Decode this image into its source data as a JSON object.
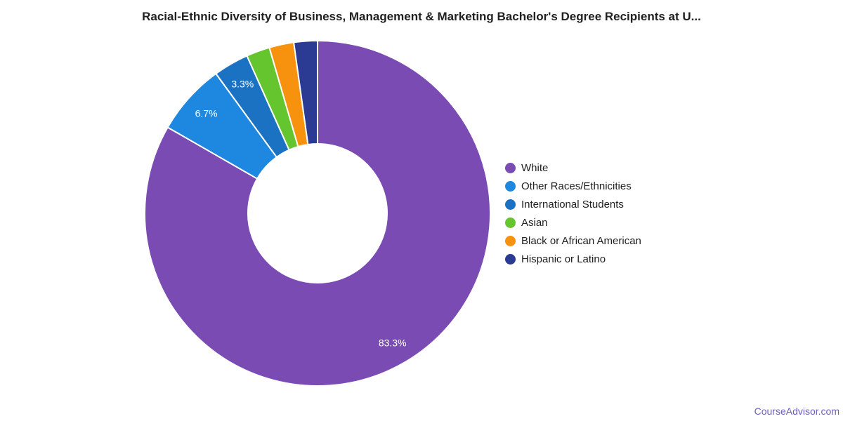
{
  "chart_data": {
    "type": "pie",
    "subtype": "donut",
    "title": "Racial-Ethnic Diversity of Business, Management & Marketing Bachelor's Degree Recipients at U...",
    "legend_position": "right",
    "grid": false,
    "start_angle_deg": 0,
    "direction": "clockwise",
    "series": [
      {
        "name": "White",
        "value": 83.3,
        "label": "83.3%",
        "label_visible": true,
        "color": "#7A4BB3"
      },
      {
        "name": "Other Races/Ethnicities",
        "value": 6.7,
        "label": "6.7%",
        "label_visible": true,
        "color": "#1E87DF"
      },
      {
        "name": "International Students",
        "value": 3.3,
        "label": "3.3%",
        "label_visible": true,
        "color": "#1C72C2"
      },
      {
        "name": "Asian",
        "value": 2.2,
        "label": "2.2%",
        "label_visible": false,
        "color": "#65C52E"
      },
      {
        "name": "Black or African American",
        "value": 2.3,
        "label": "2.3%",
        "label_visible": false,
        "color": "#F6920E"
      },
      {
        "name": "Hispanic or Latino",
        "value": 2.2,
        "label": "2.2%",
        "label_visible": false,
        "color": "#2B3A93"
      }
    ],
    "label_text_color": "#ffffff"
  },
  "footer": {
    "brand": "CourseAdvisor.com"
  }
}
